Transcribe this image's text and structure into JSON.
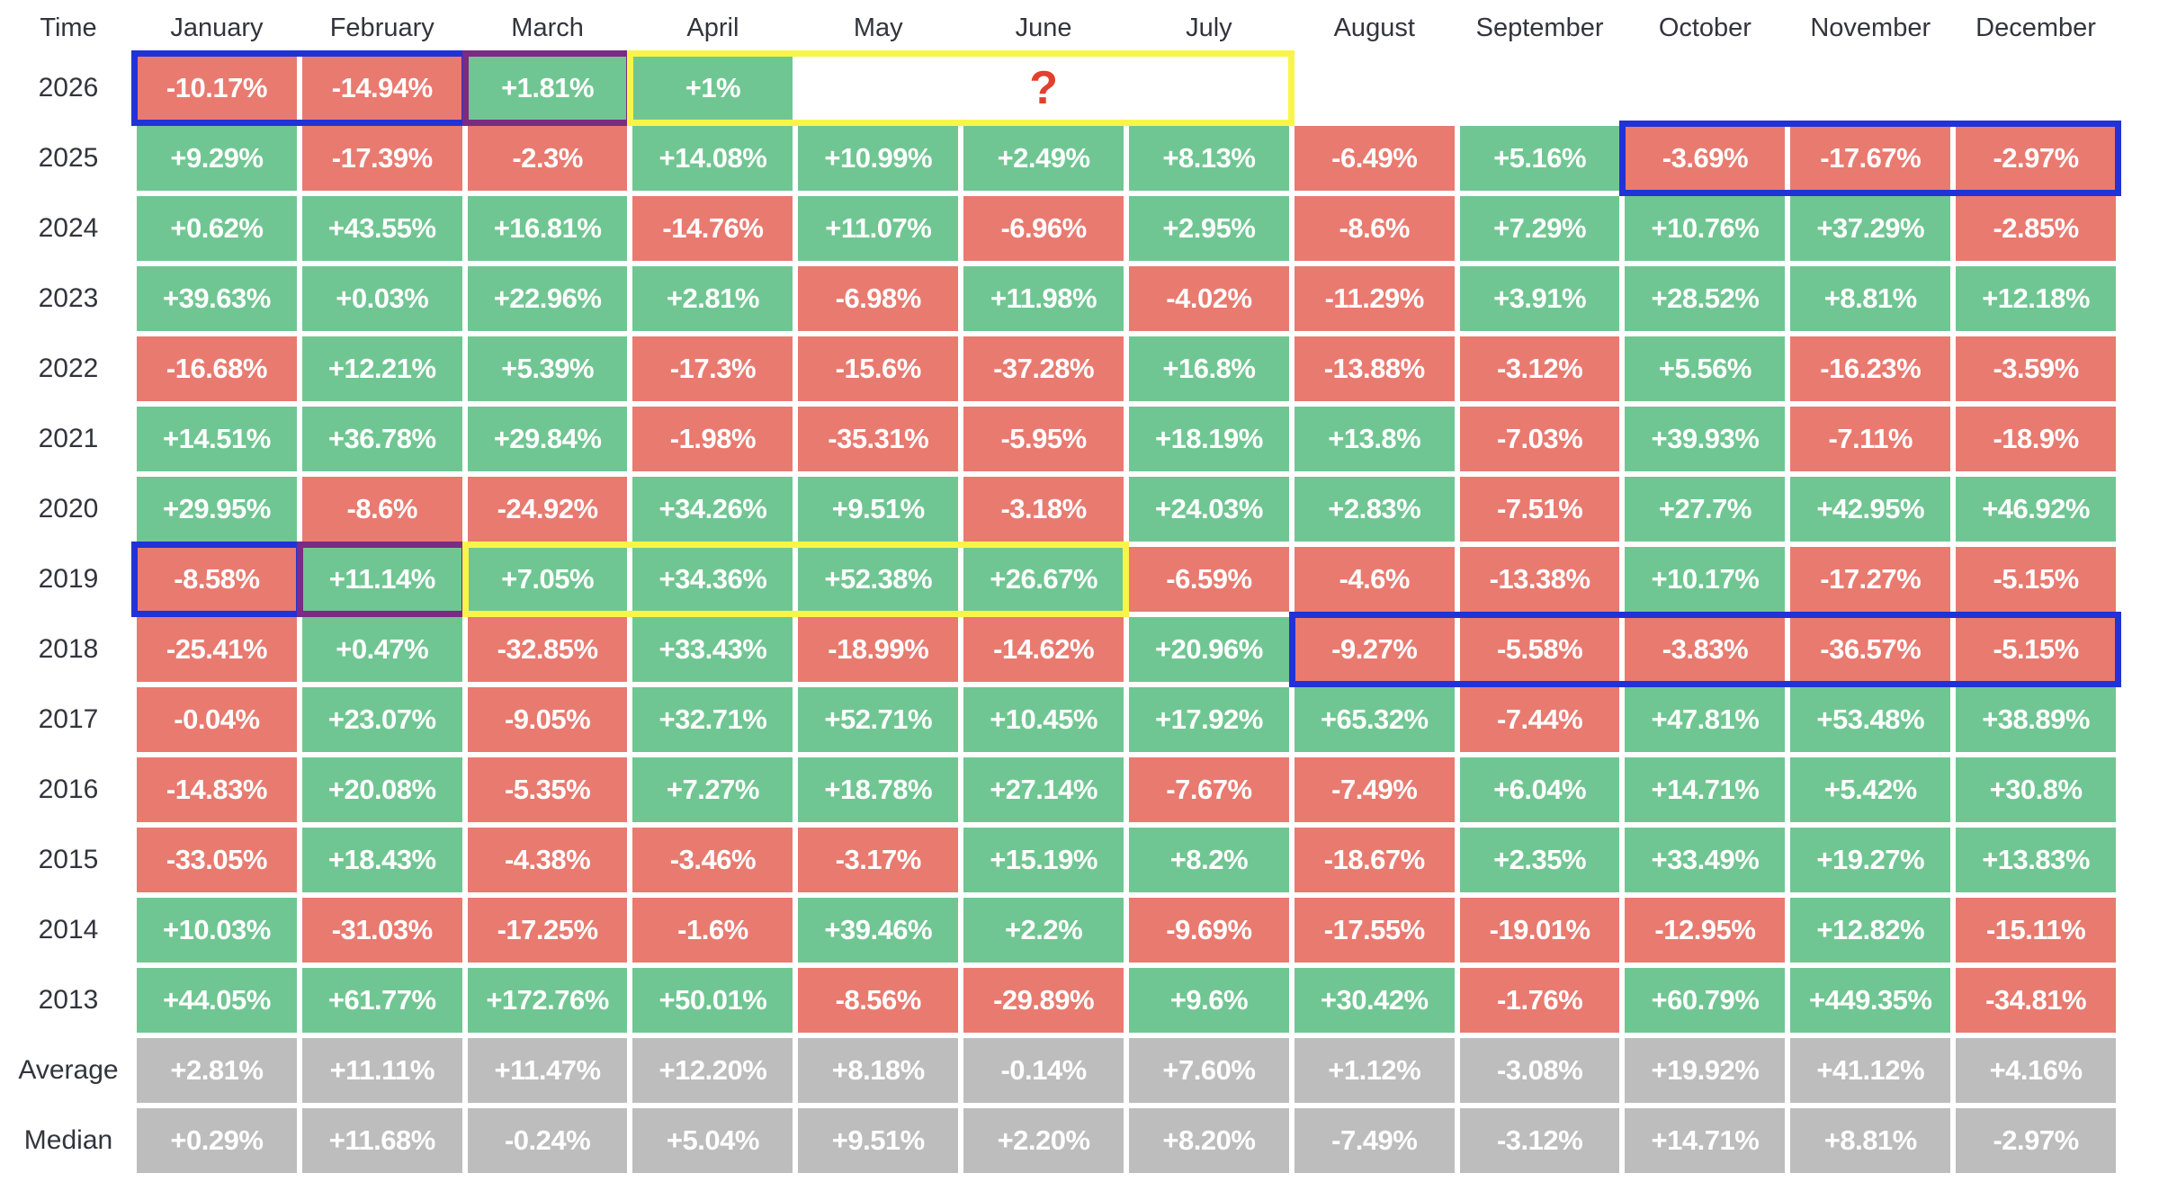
{
  "chart_data": {
    "type": "heatmap",
    "title": "Monthly returns heatmap by year",
    "corner_label": "Time",
    "columns": [
      "January",
      "February",
      "March",
      "April",
      "May",
      "June",
      "July",
      "August",
      "September",
      "October",
      "November",
      "December"
    ],
    "rows": [
      {
        "label": "2026",
        "type": "data",
        "values": [
          "-10.17%",
          "-14.94%",
          "+1.81%",
          "+1%",
          "",
          "",
          "",
          "",
          "",
          "",
          "",
          ""
        ]
      },
      {
        "label": "2025",
        "type": "data",
        "values": [
          "+9.29%",
          "-17.39%",
          "-2.3%",
          "+14.08%",
          "+10.99%",
          "+2.49%",
          "+8.13%",
          "-6.49%",
          "+5.16%",
          "-3.69%",
          "-17.67%",
          "-2.97%"
        ]
      },
      {
        "label": "2024",
        "type": "data",
        "values": [
          "+0.62%",
          "+43.55%",
          "+16.81%",
          "-14.76%",
          "+11.07%",
          "-6.96%",
          "+2.95%",
          "-8.6%",
          "+7.29%",
          "+10.76%",
          "+37.29%",
          "-2.85%"
        ]
      },
      {
        "label": "2023",
        "type": "data",
        "values": [
          "+39.63%",
          "+0.03%",
          "+22.96%",
          "+2.81%",
          "-6.98%",
          "+11.98%",
          "-4.02%",
          "-11.29%",
          "+3.91%",
          "+28.52%",
          "+8.81%",
          "+12.18%"
        ]
      },
      {
        "label": "2022",
        "type": "data",
        "values": [
          "-16.68%",
          "+12.21%",
          "+5.39%",
          "-17.3%",
          "-15.6%",
          "-37.28%",
          "+16.8%",
          "-13.88%",
          "-3.12%",
          "+5.56%",
          "-16.23%",
          "-3.59%"
        ]
      },
      {
        "label": "2021",
        "type": "data",
        "values": [
          "+14.51%",
          "+36.78%",
          "+29.84%",
          "-1.98%",
          "-35.31%",
          "-5.95%",
          "+18.19%",
          "+13.8%",
          "-7.03%",
          "+39.93%",
          "-7.11%",
          "-18.9%"
        ]
      },
      {
        "label": "2020",
        "type": "data",
        "values": [
          "+29.95%",
          "-8.6%",
          "-24.92%",
          "+34.26%",
          "+9.51%",
          "-3.18%",
          "+24.03%",
          "+2.83%",
          "-7.51%",
          "+27.7%",
          "+42.95%",
          "+46.92%"
        ]
      },
      {
        "label": "2019",
        "type": "data",
        "values": [
          "-8.58%",
          "+11.14%",
          "+7.05%",
          "+34.36%",
          "+52.38%",
          "+26.67%",
          "-6.59%",
          "-4.6%",
          "-13.38%",
          "+10.17%",
          "-17.27%",
          "-5.15%"
        ]
      },
      {
        "label": "2018",
        "type": "data",
        "values": [
          "-25.41%",
          "+0.47%",
          "-32.85%",
          "+33.43%",
          "-18.99%",
          "-14.62%",
          "+20.96%",
          "-9.27%",
          "-5.58%",
          "-3.83%",
          "-36.57%",
          "-5.15%"
        ]
      },
      {
        "label": "2017",
        "type": "data",
        "values": [
          "-0.04%",
          "+23.07%",
          "-9.05%",
          "+32.71%",
          "+52.71%",
          "+10.45%",
          "+17.92%",
          "+65.32%",
          "-7.44%",
          "+47.81%",
          "+53.48%",
          "+38.89%"
        ]
      },
      {
        "label": "2016",
        "type": "data",
        "values": [
          "-14.83%",
          "+20.08%",
          "-5.35%",
          "+7.27%",
          "+18.78%",
          "+27.14%",
          "-7.67%",
          "-7.49%",
          "+6.04%",
          "+14.71%",
          "+5.42%",
          "+30.8%"
        ]
      },
      {
        "label": "2015",
        "type": "data",
        "values": [
          "-33.05%",
          "+18.43%",
          "-4.38%",
          "-3.46%",
          "-3.17%",
          "+15.19%",
          "+8.2%",
          "-18.67%",
          "+2.35%",
          "+33.49%",
          "+19.27%",
          "+13.83%"
        ]
      },
      {
        "label": "2014",
        "type": "data",
        "values": [
          "+10.03%",
          "-31.03%",
          "-17.25%",
          "-1.6%",
          "+39.46%",
          "+2.2%",
          "-9.69%",
          "-17.55%",
          "-19.01%",
          "-12.95%",
          "+12.82%",
          "-15.11%"
        ]
      },
      {
        "label": "2013",
        "type": "data",
        "values": [
          "+44.05%",
          "+61.77%",
          "+172.76%",
          "+50.01%",
          "-8.56%",
          "-29.89%",
          "+9.6%",
          "+30.42%",
          "-1.76%",
          "+60.79%",
          "+449.35%",
          "-34.81%"
        ]
      },
      {
        "label": "Average",
        "type": "summary",
        "values": [
          "+2.81%",
          "+11.11%",
          "+11.47%",
          "+12.20%",
          "+8.18%",
          "-0.14%",
          "+7.60%",
          "+1.12%",
          "-3.08%",
          "+19.92%",
          "+41.12%",
          "+4.16%"
        ]
      },
      {
        "label": "Median",
        "type": "summary",
        "values": [
          "+0.29%",
          "+11.68%",
          "-0.24%",
          "+5.04%",
          "+9.51%",
          "+2.20%",
          "+8.20%",
          "-7.49%",
          "-3.12%",
          "+14.71%",
          "+8.81%",
          "-2.97%"
        ]
      }
    ],
    "annotations": {
      "highlights": [
        {
          "color": "blue",
          "row": "2026",
          "from": "January",
          "to": "February"
        },
        {
          "color": "purple",
          "row": "2026",
          "from": "March",
          "to": "March"
        },
        {
          "color": "yellow",
          "row": "2026",
          "from": "April",
          "to": "July"
        },
        {
          "color": "blue",
          "row": "2025",
          "from": "October",
          "to": "December"
        },
        {
          "color": "blue",
          "row": "2019",
          "from": "January",
          "to": "January"
        },
        {
          "color": "purple",
          "row": "2019",
          "from": "February",
          "to": "February"
        },
        {
          "color": "yellow",
          "row": "2019",
          "from": "March",
          "to": "June"
        },
        {
          "color": "blue",
          "row": "2018",
          "from": "August",
          "to": "December"
        }
      ],
      "question_mark": {
        "text": "?",
        "row": "2026",
        "from": "May",
        "to": "July"
      }
    },
    "palette": {
      "positive": "#70c692",
      "negative": "#e97a70",
      "neutral": "#bdbdbd",
      "highlight_blue": "#2133d6",
      "highlight_purple": "#7a2b83",
      "highlight_yellow": "#f9f548",
      "question_mark": "#e2402d",
      "label_text": "#33343c"
    },
    "layout": {
      "grid": "off",
      "legend": "none",
      "value_format": "signed percent"
    }
  }
}
